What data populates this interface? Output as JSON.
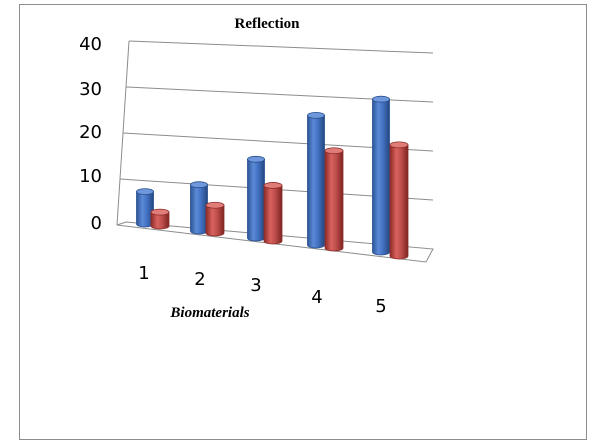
{
  "chart_data": {
    "type": "bar",
    "title": "Reflection",
    "xlabel": "Biomaterials",
    "ylabel": "",
    "categories": [
      "1",
      "2",
      "3",
      "4",
      "5"
    ],
    "series": [
      {
        "values": [
          7,
          10,
          17,
          28,
          33
        ],
        "color": "#4472c4"
      },
      {
        "values": [
          3,
          6,
          12,
          21,
          24
        ],
        "color": "#c0504d"
      }
    ],
    "yticks": [
      "0",
      "10",
      "20",
      "30",
      "40"
    ],
    "ylim": [
      0,
      40
    ],
    "grid": true,
    "style": "3d-perspective cylinders"
  }
}
